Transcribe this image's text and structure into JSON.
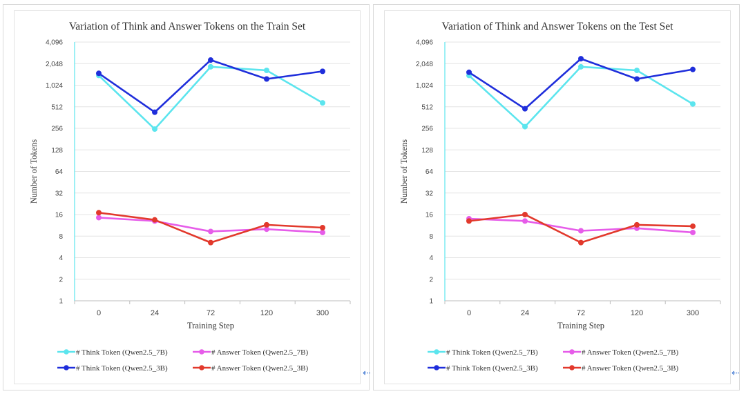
{
  "chart_data": [
    {
      "type": "line",
      "title": "Variation of Think and Answer Tokens on the Train Set",
      "xlabel": "Training Step",
      "ylabel": "Number of Tokens",
      "categories": [
        "0",
        "24",
        "72",
        "120",
        "300"
      ],
      "yscale": "log2",
      "ylim": [
        1,
        4096
      ],
      "yticks": [
        "1",
        "2",
        "4",
        "8",
        "16",
        "32",
        "64",
        "128",
        "256",
        "512",
        "1,024",
        "2,048",
        "4,096"
      ],
      "grid": "horizontal",
      "legend": "bottom",
      "series": [
        {
          "name": "# Think Token (Qwen2.5_7B)",
          "color": "#5ce5ee",
          "values": [
            1400,
            250,
            1850,
            1650,
            580
          ]
        },
        {
          "name": "# Answer Token (Qwen2.5_7B)",
          "color": "#e65ce9",
          "values": [
            14.5,
            13,
            9.3,
            10,
            9
          ]
        },
        {
          "name": "# Think Token (Qwen2.5_3B)",
          "color": "#1f2edb",
          "values": [
            1500,
            430,
            2300,
            1250,
            1600
          ]
        },
        {
          "name": "# Answer Token (Qwen2.5_3B)",
          "color": "#e2392c",
          "values": [
            17,
            13.5,
            6.5,
            11.5,
            10.5
          ]
        }
      ]
    },
    {
      "type": "line",
      "title": "Variation of Think and Answer Tokens on the Test Set",
      "xlabel": "Training Step",
      "ylabel": "Number of Tokens",
      "categories": [
        "0",
        "24",
        "72",
        "120",
        "300"
      ],
      "yscale": "log2",
      "ylim": [
        1,
        4096
      ],
      "yticks": [
        "1",
        "2",
        "4",
        "8",
        "16",
        "32",
        "64",
        "128",
        "256",
        "512",
        "1,024",
        "2,048",
        "4,096"
      ],
      "grid": "horizontal",
      "legend": "bottom",
      "series": [
        {
          "name": "# Think Token (Qwen2.5_7B)",
          "color": "#5ce5ee",
          "values": [
            1400,
            270,
            1850,
            1650,
            560
          ]
        },
        {
          "name": "# Answer Token (Qwen2.5_7B)",
          "color": "#e65ce9",
          "values": [
            14,
            13,
            9.5,
            10.3,
            9
          ]
        },
        {
          "name": "# Think Token (Qwen2.5_3B)",
          "color": "#1f2edb",
          "values": [
            1550,
            480,
            2400,
            1250,
            1700
          ]
        },
        {
          "name": "# Answer Token (Qwen2.5_3B)",
          "color": "#e2392c",
          "values": [
            13,
            16,
            6.5,
            11.5,
            11
          ]
        }
      ]
    }
  ],
  "return_marker": "⇠"
}
